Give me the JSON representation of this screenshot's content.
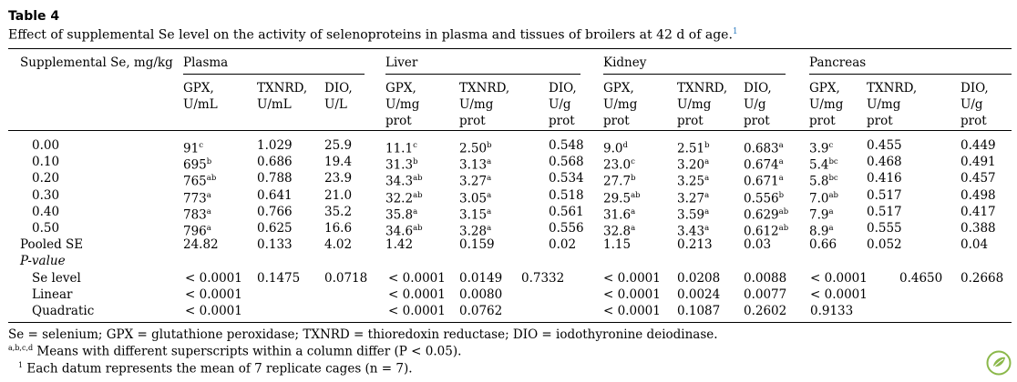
{
  "table_label": "Table 4",
  "caption": "Effect of supplemental Se level on the activity of selenoproteins in plasma and tissues of broilers at 42 d of age.",
  "caption_ref": "1",
  "header": {
    "first_col": "Supplemental Se, mg/kg",
    "groups": [
      "Plasma",
      "Liver",
      "Kidney",
      "Pancreas"
    ],
    "sub": [
      [
        "GPX,",
        "U/mL",
        ""
      ],
      [
        "TXNRD,",
        "U/mL",
        ""
      ],
      [
        "DIO,",
        "U/L",
        ""
      ],
      [
        "GPX,",
        "U/mg",
        "prot"
      ],
      [
        "TXNRD,",
        "U/mg",
        "prot"
      ],
      [
        "DIO,",
        "U/g",
        "prot"
      ],
      [
        "GPX,",
        "U/mg",
        "prot"
      ],
      [
        "TXNRD,",
        "U/mg",
        "prot"
      ],
      [
        "DIO,",
        "U/g",
        "prot"
      ],
      [
        "GPX,",
        "U/mg",
        "prot"
      ],
      [
        "TXNRD,",
        "U/mg",
        "prot"
      ],
      [
        "DIO,",
        "U/g",
        "prot"
      ]
    ]
  },
  "rows": [
    {
      "label": "0.00",
      "vals": [
        [
          "91",
          "c"
        ],
        [
          "1.029",
          ""
        ],
        [
          "25.9",
          ""
        ],
        [
          "11.1",
          "c"
        ],
        [
          "2.50",
          "b"
        ],
        [
          "0.548",
          ""
        ],
        [
          "9.0",
          "d"
        ],
        [
          "2.51",
          "b"
        ],
        [
          "0.683",
          "a"
        ],
        [
          "3.9",
          "c"
        ],
        [
          "0.455",
          ""
        ],
        [
          "0.449",
          ""
        ]
      ]
    },
    {
      "label": "0.10",
      "vals": [
        [
          "695",
          "b"
        ],
        [
          "0.686",
          ""
        ],
        [
          "19.4",
          ""
        ],
        [
          "31.3",
          "b"
        ],
        [
          "3.13",
          "a"
        ],
        [
          "0.568",
          ""
        ],
        [
          "23.0",
          "c"
        ],
        [
          "3.20",
          "a"
        ],
        [
          "0.674",
          "a"
        ],
        [
          "5.4",
          "bc"
        ],
        [
          "0.468",
          ""
        ],
        [
          "0.491",
          ""
        ]
      ]
    },
    {
      "label": "0.20",
      "vals": [
        [
          "765",
          "ab"
        ],
        [
          "0.788",
          ""
        ],
        [
          "23.9",
          ""
        ],
        [
          "34.3",
          "ab"
        ],
        [
          "3.27",
          "a"
        ],
        [
          "0.534",
          ""
        ],
        [
          "27.7",
          "b"
        ],
        [
          "3.25",
          "a"
        ],
        [
          "0.671",
          "a"
        ],
        [
          "5.8",
          "bc"
        ],
        [
          "0.416",
          ""
        ],
        [
          "0.457",
          ""
        ]
      ]
    },
    {
      "label": "0.30",
      "vals": [
        [
          "773",
          "a"
        ],
        [
          "0.641",
          ""
        ],
        [
          "21.0",
          ""
        ],
        [
          "32.2",
          "ab"
        ],
        [
          "3.05",
          "a"
        ],
        [
          "0.518",
          ""
        ],
        [
          "29.5",
          "ab"
        ],
        [
          "3.27",
          "a"
        ],
        [
          "0.556",
          "b"
        ],
        [
          "7.0",
          "ab"
        ],
        [
          "0.517",
          ""
        ],
        [
          "0.498",
          ""
        ]
      ]
    },
    {
      "label": "0.40",
      "vals": [
        [
          "783",
          "a"
        ],
        [
          "0.766",
          ""
        ],
        [
          "35.2",
          ""
        ],
        [
          "35.8",
          "a"
        ],
        [
          "3.15",
          "a"
        ],
        [
          "0.561",
          ""
        ],
        [
          "31.6",
          "a"
        ],
        [
          "3.59",
          "a"
        ],
        [
          "0.629",
          "ab"
        ],
        [
          "7.9",
          "a"
        ],
        [
          "0.517",
          ""
        ],
        [
          "0.417",
          ""
        ]
      ]
    },
    {
      "label": "0.50",
      "vals": [
        [
          "796",
          "a"
        ],
        [
          "0.625",
          ""
        ],
        [
          "16.6",
          ""
        ],
        [
          "34.6",
          "ab"
        ],
        [
          "3.28",
          "a"
        ],
        [
          "0.556",
          ""
        ],
        [
          "32.8",
          "a"
        ],
        [
          "3.43",
          "a"
        ],
        [
          "0.612",
          "ab"
        ],
        [
          "8.9",
          "a"
        ],
        [
          "0.555",
          ""
        ],
        [
          "0.388",
          ""
        ]
      ]
    }
  ],
  "pooled": {
    "label": "Pooled SE",
    "vals": [
      "24.82",
      "0.133",
      "4.02",
      "1.42",
      "0.159",
      "0.02",
      "1.15",
      "0.213",
      "0.03",
      "0.66",
      "0.052",
      "0.04"
    ]
  },
  "pvalue_label": "P-value",
  "pvalue_rows": [
    {
      "label": "Se level",
      "vals": [
        "< 0.0001",
        "0.1475",
        "0.0718",
        "< 0.0001",
        "0.0149",
        "0.7332",
        "< 0.0001",
        "0.0208",
        "0.0088",
        "< 0.0001",
        "0.4650",
        "0.2668"
      ]
    },
    {
      "label": "Linear",
      "vals": [
        "< 0.0001",
        "",
        "",
        "< 0.0001",
        "0.0080",
        "",
        "< 0.0001",
        "0.0024",
        "0.0077",
        "< 0.0001",
        "",
        ""
      ]
    },
    {
      "label": "Quadratic",
      "vals": [
        "< 0.0001",
        "",
        "",
        "< 0.0001",
        "0.0762",
        "",
        "< 0.0001",
        "0.1087",
        "0.2602",
        "0.9133",
        "",
        ""
      ]
    }
  ],
  "footnotes": {
    "abbrev": "Se = selenium; GPX = glutathione peroxidase; TXNRD = thioredoxin reductase; DIO = iodothyronine deiodinase.",
    "sig_mark": "a,b,c,d",
    "sig_text": " Means with different superscripts within a column differ (P < 0.05).",
    "note_mark": "1",
    "note_text": " Each datum represents the mean of 7 replicate cages (n = 7)."
  }
}
